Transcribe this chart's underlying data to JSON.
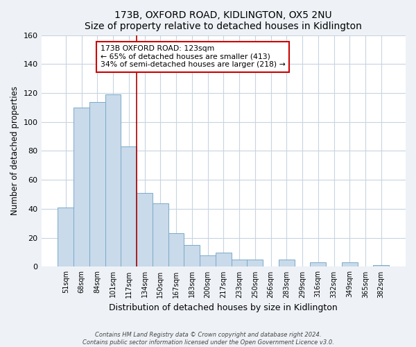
{
  "title": "173B, OXFORD ROAD, KIDLINGTON, OX5 2NU",
  "subtitle": "Size of property relative to detached houses in Kidlington",
  "xlabel": "Distribution of detached houses by size in Kidlington",
  "ylabel": "Number of detached properties",
  "bar_labels": [
    "51sqm",
    "68sqm",
    "84sqm",
    "101sqm",
    "117sqm",
    "134sqm",
    "150sqm",
    "167sqm",
    "183sqm",
    "200sqm",
    "217sqm",
    "233sqm",
    "250sqm",
    "266sqm",
    "283sqm",
    "299sqm",
    "316sqm",
    "332sqm",
    "349sqm",
    "365sqm",
    "382sqm"
  ],
  "bar_values": [
    41,
    110,
    114,
    119,
    83,
    51,
    44,
    23,
    15,
    8,
    10,
    5,
    5,
    0,
    5,
    0,
    3,
    0,
    3,
    0,
    1
  ],
  "bar_color": "#c9daea",
  "bar_edgecolor": "#7aaac8",
  "vline_x": 4.5,
  "vline_color": "#aa0000",
  "annotation_title": "173B OXFORD ROAD: 123sqm",
  "annotation_line1": "← 65% of detached houses are smaller (413)",
  "annotation_line2": "34% of semi-detached houses are larger (218) →",
  "annotation_box_edgecolor": "#cc0000",
  "ylim": [
    0,
    160
  ],
  "yticks": [
    0,
    20,
    40,
    60,
    80,
    100,
    120,
    140,
    160
  ],
  "footer1": "Contains HM Land Registry data © Crown copyright and database right 2024.",
  "footer2": "Contains public sector information licensed under the Open Government Licence v3.0.",
  "background_color": "#eef2f7",
  "plot_background": "#ffffff",
  "grid_color": "#c8d4e0"
}
